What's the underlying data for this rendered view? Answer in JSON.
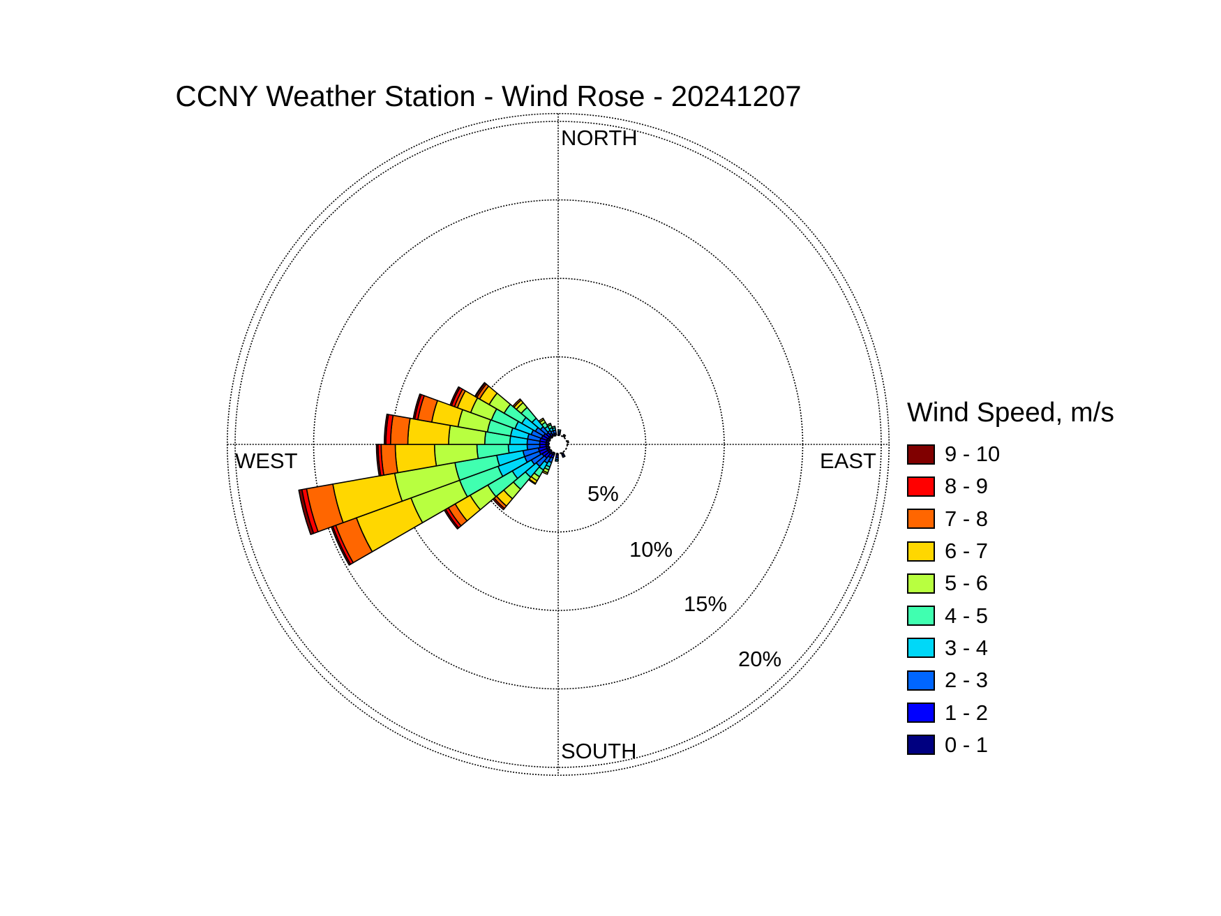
{
  "chart_data": {
    "type": "windrose",
    "title": "CCNY Weather Station - Wind Rose - 20241207",
    "direction_labels": [
      "NORTH",
      "EAST",
      "SOUTH",
      "WEST"
    ],
    "radial_ticks": [
      5,
      10,
      15,
      20
    ],
    "radial_tick_labels": [
      "5%",
      "10%",
      "15%",
      "20%"
    ],
    "radial_max": 20.5,
    "grid": true,
    "legend": {
      "title": "Wind Speed, m/s",
      "placement": "right",
      "bins": [
        {
          "label": "9 - 10",
          "color": "#800000"
        },
        {
          "label": "8 - 9",
          "color": "#FF0000"
        },
        {
          "label": "7 - 8",
          "color": "#FF6600"
        },
        {
          "label": "6 - 7",
          "color": "#FFD700"
        },
        {
          "label": "5 - 6",
          "color": "#B8FF40"
        },
        {
          "label": "4 - 5",
          "color": "#40FFB0"
        },
        {
          "label": "3 - 4",
          "color": "#00D8F8"
        },
        {
          "label": "2 - 3",
          "color": "#0066FF"
        },
        {
          "label": "1 - 2",
          "color": "#0000FF"
        },
        {
          "label": "0 - 1",
          "color": "#000080"
        }
      ]
    },
    "sector_width_deg": 10,
    "speed_bins_order": "0-1 to 9-10 (inner to outer)",
    "sectors": [
      {
        "direction": 5,
        "values": [
          0.05,
          0.1,
          0.1,
          0.1,
          0,
          0,
          0,
          0,
          0,
          0
        ]
      },
      {
        "direction": 35,
        "values": [
          0.05,
          0.05,
          0.05,
          0,
          0,
          0,
          0,
          0,
          0,
          0
        ]
      },
      {
        "direction": 75,
        "values": [
          0.05,
          0.05,
          0,
          0,
          0,
          0,
          0,
          0,
          0,
          0
        ]
      },
      {
        "direction": 155,
        "values": [
          0.1,
          0.1,
          0.1,
          0,
          0,
          0,
          0,
          0,
          0,
          0
        ]
      },
      {
        "direction": 185,
        "values": [
          0.1,
          0.15,
          0.15,
          0.1,
          0,
          0,
          0,
          0,
          0,
          0
        ]
      },
      {
        "direction": 205,
        "values": [
          0.15,
          0.2,
          0.3,
          0.3,
          0.2,
          0.2,
          0.1,
          0,
          0,
          0
        ]
      },
      {
        "direction": 215,
        "values": [
          0.15,
          0.25,
          0.4,
          0.5,
          0.5,
          0.3,
          0.2,
          0.05,
          0,
          0
        ]
      },
      {
        "direction": 225,
        "values": [
          0.2,
          0.35,
          0.7,
          0.9,
          1.0,
          0.8,
          0.6,
          0.2,
          0.1,
          0
        ]
      },
      {
        "direction": 235,
        "values": [
          0.2,
          0.4,
          0.8,
          1.4,
          1.8,
          1.3,
          1.1,
          0.5,
          0.2,
          0.1
        ]
      },
      {
        "direction": 245,
        "values": [
          0.2,
          0.5,
          1.0,
          1.8,
          2.6,
          3.3,
          3.7,
          1.4,
          0.2,
          0.1
        ]
      },
      {
        "direction": 255,
        "values": [
          0.2,
          0.5,
          1.0,
          1.7,
          2.7,
          3.9,
          4.0,
          1.7,
          0.3,
          0.2
        ]
      },
      {
        "direction": 265,
        "values": [
          0.2,
          0.4,
          0.8,
          1.2,
          2.0,
          2.7,
          2.5,
          0.9,
          0.2,
          0.1
        ]
      },
      {
        "direction": 275,
        "values": [
          0.2,
          0.4,
          0.8,
          1.1,
          1.6,
          2.3,
          2.6,
          1.1,
          0.3,
          0.1
        ]
      },
      {
        "direction": 285,
        "values": [
          0.2,
          0.4,
          0.8,
          1.1,
          1.5,
          1.9,
          1.7,
          0.9,
          0.2,
          0.1
        ]
      },
      {
        "direction": 295,
        "values": [
          0.2,
          0.35,
          0.7,
          1.1,
          1.6,
          1.4,
          0.9,
          0.2,
          0.2,
          0.1
        ]
      },
      {
        "direction": 305,
        "values": [
          0.15,
          0.35,
          0.6,
          1.0,
          1.3,
          1.1,
          0.7,
          0.2,
          0.1,
          0.05
        ]
      },
      {
        "direction": 315,
        "values": [
          0.15,
          0.25,
          0.5,
          0.7,
          0.9,
          0.4,
          0.2,
          0.1,
          0,
          0
        ]
      },
      {
        "direction": 325,
        "values": [
          0.1,
          0.15,
          0.2,
          0.3,
          0.3,
          0.2,
          0.1,
          0,
          0,
          0
        ]
      },
      {
        "direction": 335,
        "values": [
          0.05,
          0.1,
          0.2,
          0.2,
          0.2,
          0.1,
          0,
          0,
          0,
          0
        ]
      },
      {
        "direction": 345,
        "values": [
          0.05,
          0.1,
          0.2,
          0.15,
          0.1,
          0,
          0,
          0,
          0,
          0
        ]
      }
    ]
  }
}
